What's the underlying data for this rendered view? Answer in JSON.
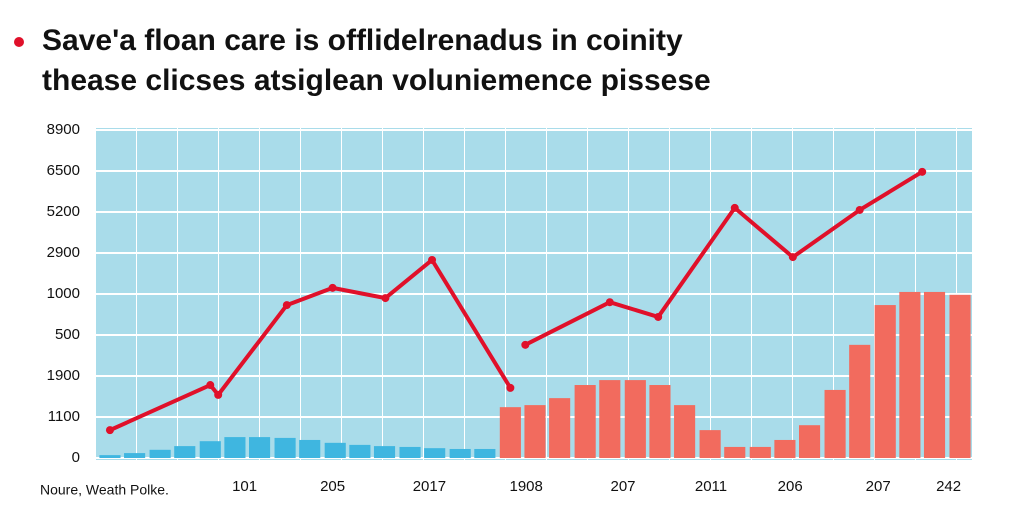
{
  "chart_data": {
    "type": "combo",
    "title": "Save'a floan care is offlidelrenadus in coinity",
    "subtitle": "thease clicses atsiglean voluniemence pissese",
    "source": "Noure, Weath Polke.",
    "xlim": [
      0,
      10
    ],
    "xticks": [
      {
        "value": 1.7,
        "label": "101"
      },
      {
        "value": 2.7,
        "label": "205"
      },
      {
        "value": 3.8,
        "label": "2017"
      },
      {
        "value": 4.9,
        "label": "1908"
      },
      {
        "value": 6.0,
        "label": "207"
      },
      {
        "value": 7.0,
        "label": "2011"
      },
      {
        "value": 7.9,
        "label": "206"
      },
      {
        "value": 8.9,
        "label": "207"
      },
      {
        "value": 9.7,
        "label": "242"
      }
    ],
    "ylim": [
      0,
      8
    ],
    "yticks": [
      {
        "value": 0,
        "label": "0"
      },
      {
        "value": 1,
        "label": "1100"
      },
      {
        "value": 2,
        "label": "1900"
      },
      {
        "value": 3,
        "label": "500"
      },
      {
        "value": 4,
        "label": "1000"
      },
      {
        "value": 5,
        "label": "2900"
      },
      {
        "value": 6,
        "label": "5200"
      },
      {
        "value": 7,
        "label": "6500"
      },
      {
        "value": 8,
        "label": "8900"
      }
    ],
    "grid": true,
    "series": [
      {
        "type": "bar",
        "color": "#3fb6e0",
        "x": [
          0.17,
          0.45,
          0.74,
          1.02,
          1.31,
          1.59,
          1.87,
          2.16,
          2.44,
          2.73,
          3.01,
          3.29,
          3.58,
          3.86,
          4.15,
          4.43
        ],
        "values": [
          0.07,
          0.12,
          0.2,
          0.29,
          0.41,
          0.51,
          0.51,
          0.49,
          0.44,
          0.37,
          0.32,
          0.29,
          0.27,
          0.24,
          0.22,
          0.22
        ]
      },
      {
        "type": "bar",
        "color": "#f26b5e",
        "x": [
          4.72,
          5.0,
          5.28,
          5.57,
          5.85,
          6.14,
          6.42,
          6.7,
          6.99,
          7.27,
          7.56,
          7.84,
          8.12,
          8.41,
          8.69,
          8.98,
          9.26,
          9.54,
          9.83
        ],
        "values": [
          1.24,
          1.29,
          1.46,
          1.78,
          1.9,
          1.9,
          1.78,
          1.29,
          0.68,
          0.27,
          0.27,
          0.44,
          0.8,
          1.66,
          2.76,
          3.73,
          4.05,
          4.05,
          3.98
        ]
      },
      {
        "type": "line",
        "color": "#e0102a",
        "x": [
          0.17,
          1.31,
          1.4,
          2.18,
          2.7,
          3.3,
          3.83,
          4.72,
          null,
          4.89,
          5.85,
          6.4,
          7.27,
          7.93,
          8.69,
          9.4
        ],
        "values": [
          0.68,
          1.78,
          1.54,
          3.73,
          4.15,
          3.9,
          4.83,
          1.71,
          null,
          2.76,
          3.8,
          3.44,
          6.1,
          4.9,
          6.05,
          6.98
        ]
      }
    ]
  }
}
